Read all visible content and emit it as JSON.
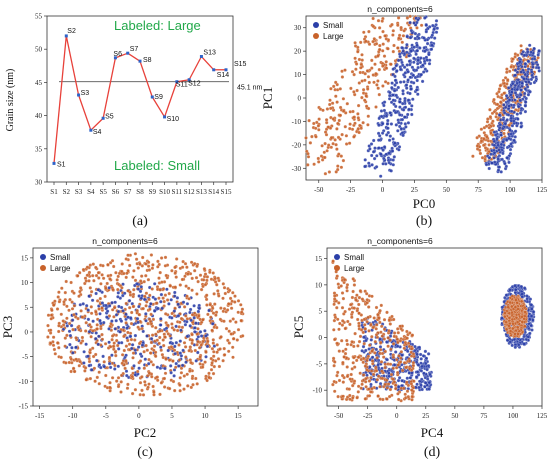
{
  "chart_data": [
    {
      "type": "line",
      "panel_caption": "(a)",
      "ylabel": "Grain size (nm)",
      "xlabel": "",
      "categories": [
        "S1",
        "S2",
        "S3",
        "S4",
        "S5",
        "S6",
        "S7",
        "S8",
        "S9",
        "S10",
        "S11",
        "S12",
        "S13",
        "S14",
        "S15"
      ],
      "values": [
        32.8,
        52.0,
        43.1,
        37.8,
        39.6,
        48.7,
        49.4,
        48.2,
        42.8,
        39.8,
        45.1,
        45.4,
        48.9,
        46.9,
        46.9
      ],
      "point_labels": [
        "S1",
        "S2",
        "S3",
        "S4",
        "S5",
        "S6",
        "S7",
        "S8",
        "S9",
        "S10",
        "S11",
        "S12",
        "S13",
        "S14",
        "S15"
      ],
      "ylim": [
        30,
        55
      ],
      "yticks": [
        30,
        35,
        40,
        45,
        50,
        55
      ],
      "line_color": "#e8413a",
      "marker_color": "#2e63c8",
      "threshold": {
        "value": 45.1,
        "label": "45.1 nm",
        "color": "#555555"
      },
      "annotations": [
        {
          "text": "Labeled: Large",
          "color": "#22a84a"
        },
        {
          "text": "Labeled: Small",
          "color": "#22a84a"
        }
      ]
    },
    {
      "type": "scatter",
      "panel_caption": "(b)",
      "title": "n_components=6",
      "xlabel": "PC0",
      "ylabel": "PC1",
      "xlim": [
        -60,
        125
      ],
      "ylim": [
        -35,
        35
      ],
      "xticks": [
        -50,
        -25,
        0,
        25,
        50,
        75,
        100,
        125
      ],
      "yticks": [
        -30,
        -20,
        -10,
        0,
        10,
        20,
        30
      ],
      "legend": {
        "placement": "top-left",
        "entries": [
          "Small",
          "Large"
        ]
      },
      "series": [
        {
          "name": "Small",
          "color": "#2b3fa8",
          "regions": [
            {
              "x_range": [
                -5,
                35
              ],
              "y_range": [
                -30,
                33
              ],
              "kind": "diagonal-band"
            },
            {
              "x_range": [
                88,
                118
              ],
              "y_range": [
                -30,
                20
              ],
              "kind": "diagonal-band"
            }
          ]
        },
        {
          "name": "Large",
          "color": "#c8622a",
          "regions": [
            {
              "x_range": [
                -55,
                15
              ],
              "y_range": [
                -30,
                35
              ],
              "kind": "diagonal-band"
            },
            {
              "x_range": [
                80,
                115
              ],
              "y_range": [
                -25,
                20
              ],
              "kind": "diagonal-band"
            }
          ]
        }
      ]
    },
    {
      "type": "scatter",
      "panel_caption": "(c)",
      "title": "n_components=6",
      "xlabel": "PC2",
      "ylabel": "PC3",
      "xlim": [
        -16,
        18
      ],
      "ylim": [
        -15,
        17
      ],
      "xticks": [
        -15,
        -10,
        -5,
        0,
        5,
        10,
        15
      ],
      "yticks": [
        -15,
        -10,
        -5,
        0,
        5,
        10,
        15
      ],
      "legend": {
        "placement": "top-left",
        "entries": [
          "Small",
          "Large"
        ]
      },
      "series": [
        {
          "name": "Small",
          "color": "#2b3fa8",
          "regions": [
            {
              "x_range": [
                -12,
                12
              ],
              "y_range": [
                -10,
                10
              ],
              "kind": "ellipse"
            }
          ]
        },
        {
          "name": "Large",
          "color": "#c8622a",
          "regions": [
            {
              "x_range": [
                -14,
                16
              ],
              "y_range": [
                -13,
                16
              ],
              "kind": "ellipse"
            }
          ]
        }
      ]
    },
    {
      "type": "scatter",
      "panel_caption": "(d)",
      "title": "n_components=6",
      "xlabel": "PC4",
      "ylabel": "PC5",
      "xlim": [
        -60,
        125
      ],
      "ylim": [
        -13,
        17
      ],
      "xticks": [
        -50,
        -25,
        0,
        25,
        50,
        75,
        100,
        125
      ],
      "yticks": [
        -10,
        -5,
        0,
        5,
        10,
        15
      ],
      "legend": {
        "placement": "top-left",
        "entries": [
          "Small",
          "Large"
        ]
      },
      "series": [
        {
          "name": "Small",
          "color": "#2b3fa8",
          "regions": [
            {
              "x_range": [
                -30,
                30
              ],
              "y_range": [
                -10,
                5
              ],
              "kind": "wedge"
            },
            {
              "x_range": [
                90,
                118
              ],
              "y_range": [
                -2,
                10
              ],
              "kind": "ellipse"
            }
          ]
        },
        {
          "name": "Large",
          "color": "#c8622a",
          "regions": [
            {
              "x_range": [
                -55,
                15
              ],
              "y_range": [
                -12,
                15
              ],
              "kind": "wedge"
            },
            {
              "x_range": [
                92,
                112
              ],
              "y_range": [
                0,
                8
              ],
              "kind": "ellipse"
            }
          ]
        }
      ]
    }
  ]
}
